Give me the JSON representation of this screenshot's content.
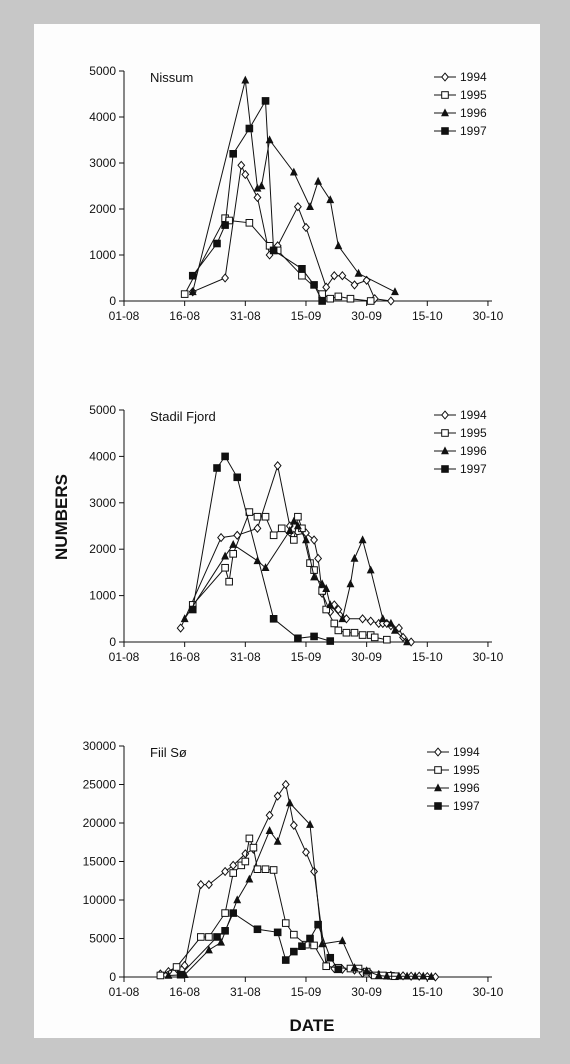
{
  "figure": {
    "ylabel": "NUMBERS",
    "xlabel": "DATE"
  },
  "chart_data": [
    {
      "type": "line",
      "title": "Nissum",
      "ylim": [
        0,
        5000
      ],
      "yticks": [
        0,
        1000,
        2000,
        3000,
        4000,
        5000
      ],
      "x_tick_labels": [
        "01-08",
        "16-08",
        "31-08",
        "15-09",
        "30-09",
        "15-10",
        "30-10"
      ],
      "x_axis": "day from 1 August",
      "legend_position": "top-right",
      "series": [
        {
          "name": "1994",
          "marker": "open-diamond",
          "x": [
            17,
            25,
            29,
            30,
            33,
            36,
            38,
            43,
            45,
            50,
            52,
            54,
            57,
            60,
            62,
            66
          ],
          "y": [
            200,
            500,
            2950,
            2750,
            2250,
            1000,
            1200,
            2050,
            1600,
            300,
            550,
            550,
            350,
            450,
            50,
            0
          ]
        },
        {
          "name": "1995",
          "marker": "open-square",
          "x": [
            15,
            25,
            26,
            31,
            36,
            38,
            44,
            49,
            51,
            53,
            56,
            61
          ],
          "y": [
            150,
            1800,
            1750,
            1700,
            1200,
            1100,
            550,
            150,
            50,
            100,
            50,
            0
          ]
        },
        {
          "name": "1996",
          "marker": "filled-triangle",
          "x": [
            17,
            30,
            33,
            34,
            36,
            42,
            46,
            48,
            51,
            53,
            58,
            67
          ],
          "y": [
            200,
            4800,
            2450,
            2500,
            3500,
            2800,
            2050,
            2600,
            2200,
            1200,
            600,
            200
          ]
        },
        {
          "name": "1997",
          "marker": "filled-square",
          "x": [
            17,
            23,
            25,
            27,
            31,
            35,
            37,
            44,
            47,
            49
          ],
          "y": [
            550,
            1250,
            1650,
            3200,
            3750,
            4350,
            1100,
            700,
            350,
            0
          ]
        }
      ]
    },
    {
      "type": "line",
      "title": "Stadil Fjord",
      "ylim": [
        0,
        5000
      ],
      "yticks": [
        0,
        1000,
        2000,
        3000,
        4000,
        5000
      ],
      "x_tick_labels": [
        "01-08",
        "16-08",
        "31-08",
        "15-09",
        "30-09",
        "15-10",
        "30-10"
      ],
      "x_axis": "day from 1 August",
      "legend_position": "top-right",
      "series": [
        {
          "name": "1994",
          "marker": "open-diamond",
          "x": [
            14,
            24,
            28,
            33,
            38,
            41,
            42,
            45,
            47,
            48,
            49,
            51,
            52,
            53,
            55,
            59,
            61,
            63,
            64,
            65,
            66,
            68,
            69,
            71
          ],
          "y": [
            300,
            2250,
            2300,
            2450,
            3800,
            2500,
            2300,
            2350,
            2200,
            1800,
            1050,
            650,
            800,
            700,
            500,
            500,
            450,
            400,
            400,
            400,
            350,
            300,
            100,
            0
          ]
        },
        {
          "name": "1995",
          "marker": "open-square",
          "x": [
            17,
            25,
            26,
            27,
            31,
            33,
            35,
            37,
            39,
            42,
            43,
            44,
            46,
            47,
            49,
            50,
            52,
            53,
            55,
            57,
            59,
            61,
            62,
            65
          ],
          "y": [
            800,
            1600,
            1300,
            1900,
            2800,
            2700,
            2700,
            2300,
            2450,
            2200,
            2700,
            2450,
            1700,
            1550,
            1100,
            700,
            400,
            250,
            200,
            200,
            150,
            150,
            100,
            50
          ]
        },
        {
          "name": "1996",
          "marker": "filled-triangle",
          "x": [
            15,
            25,
            27,
            33,
            35,
            41,
            42,
            43,
            45,
            47,
            49,
            50,
            51,
            54,
            56,
            57,
            59,
            61,
            64,
            66,
            67,
            70
          ],
          "y": [
            500,
            1850,
            2100,
            1750,
            1600,
            2400,
            2600,
            2500,
            2200,
            1400,
            1250,
            1150,
            800,
            500,
            1250,
            1800,
            2200,
            1550,
            500,
            400,
            250,
            0
          ]
        },
        {
          "name": "1997",
          "marker": "filled-square",
          "x": [
            17,
            23,
            25,
            28,
            37,
            43,
            47,
            51
          ],
          "y": [
            700,
            3750,
            4000,
            3550,
            500,
            80,
            120,
            20
          ]
        }
      ]
    },
    {
      "type": "line",
      "title": "Fiil Sø",
      "ylim": [
        0,
        30000
      ],
      "yticks": [
        0,
        5000,
        10000,
        15000,
        20000,
        25000,
        30000
      ],
      "x_tick_labels": [
        "01-08",
        "16-08",
        "31-08",
        "15-09",
        "30-09",
        "15-10",
        "30-10"
      ],
      "x_axis": "day from 1 August",
      "legend_position": "top-right",
      "series": [
        {
          "name": "1994",
          "marker": "open-diamond",
          "x": [
            9,
            11,
            13,
            15,
            19,
            21,
            25,
            27,
            30,
            32,
            36,
            38,
            40,
            42,
            45,
            47,
            50,
            52,
            54,
            57,
            59,
            61,
            63,
            66,
            69,
            71,
            73,
            75,
            77
          ],
          "y": [
            400,
            700,
            1100,
            1500,
            12000,
            12000,
            13700,
            14500,
            16000,
            16600,
            21000,
            23500,
            25000,
            19700,
            16200,
            13700,
            1500,
            1100,
            1000,
            900,
            500,
            400,
            300,
            200,
            150,
            100,
            100,
            50,
            0
          ]
        },
        {
          "name": "1995",
          "marker": "open-square",
          "x": [
            9,
            13,
            19,
            21,
            25,
            27,
            29,
            30,
            31,
            32,
            33,
            35,
            37,
            40,
            42,
            45,
            47,
            50,
            53,
            56,
            58,
            60,
            62,
            64,
            66,
            67
          ],
          "y": [
            200,
            1300,
            5200,
            5200,
            8300,
            13500,
            14500,
            15000,
            18000,
            16800,
            14000,
            14000,
            13900,
            7000,
            5500,
            4200,
            4100,
            1400,
            1200,
            1100,
            1100,
            700,
            200,
            200,
            150,
            100
          ]
        },
        {
          "name": "1996",
          "marker": "filled-triangle",
          "x": [
            11,
            15,
            21,
            24,
            28,
            31,
            36,
            38,
            41,
            46,
            49,
            54,
            57,
            60,
            63,
            65,
            68,
            70,
            72,
            74,
            76
          ],
          "y": [
            200,
            300,
            3500,
            4500,
            10000,
            12700,
            19000,
            17600,
            22600,
            19800,
            4300,
            4700,
            1200,
            800,
            200,
            100,
            100,
            100,
            100,
            100,
            50
          ]
        },
        {
          "name": "1997",
          "marker": "filled-square",
          "x": [
            14,
            23,
            25,
            27,
            33,
            38,
            40,
            42,
            44,
            46,
            48,
            51,
            53
          ],
          "y": [
            300,
            5200,
            6000,
            8300,
            6200,
            5800,
            2200,
            3300,
            4000,
            5000,
            6800,
            2500,
            1000
          ]
        }
      ]
    }
  ]
}
